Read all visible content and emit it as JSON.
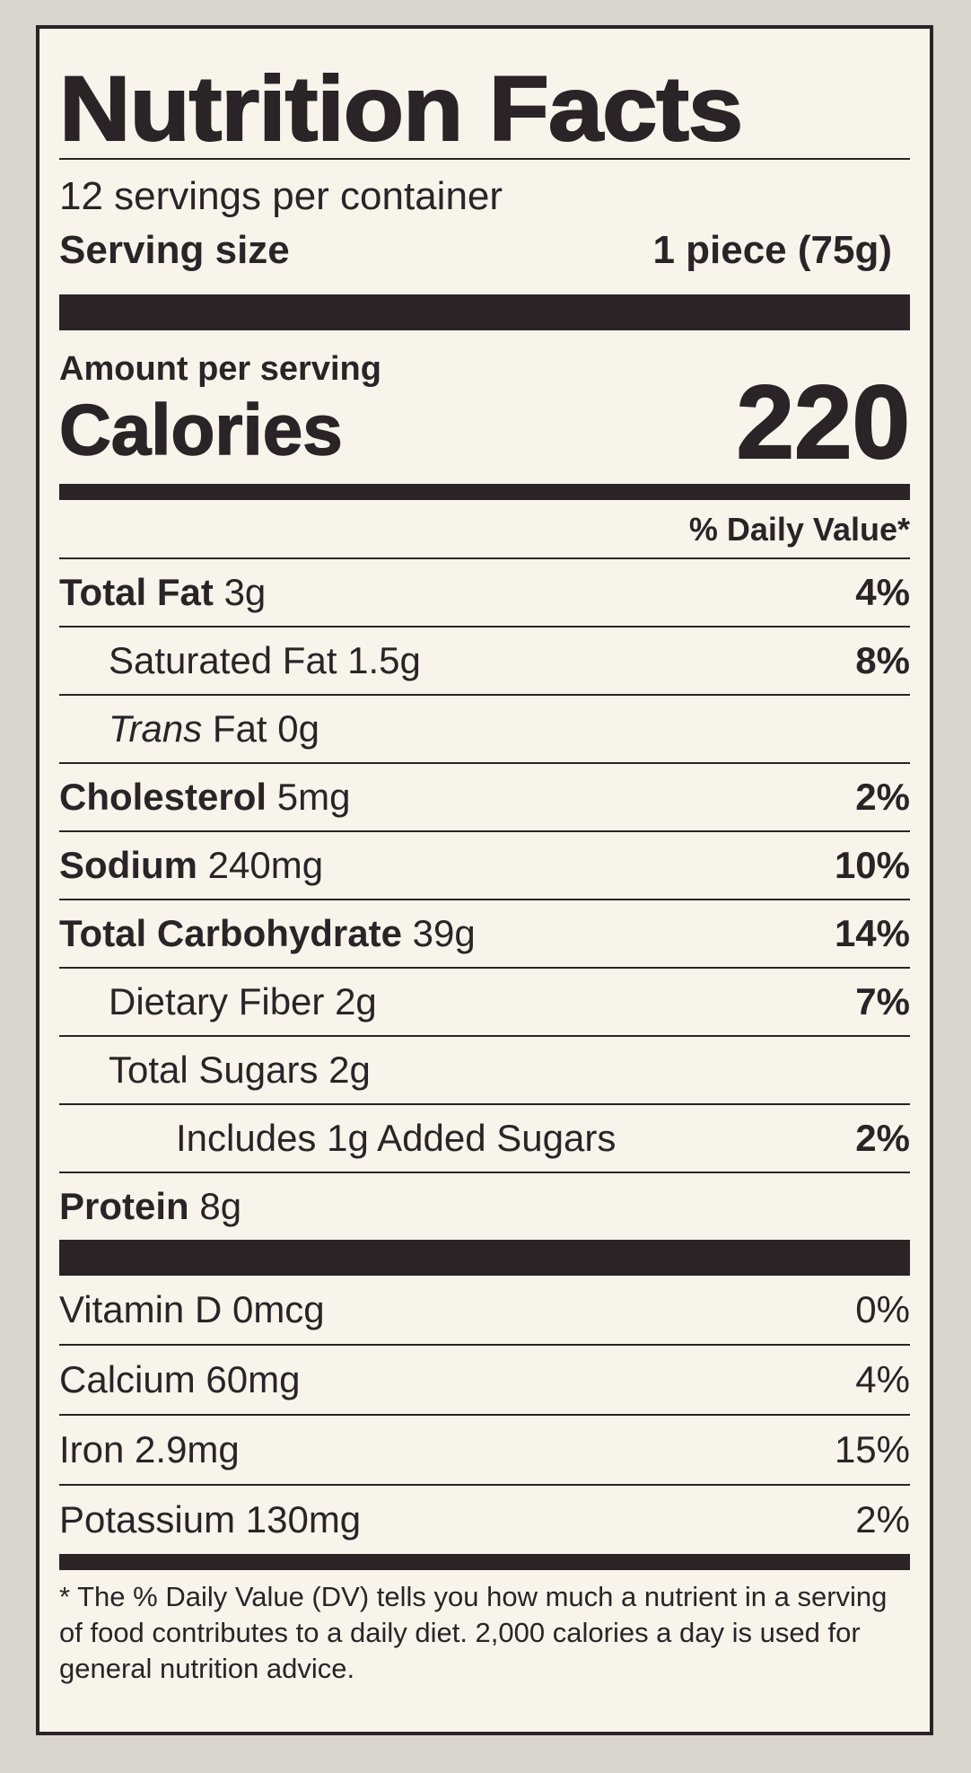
{
  "title": "Nutrition Facts",
  "servings_per_container": "12 servings per container",
  "serving_size": {
    "label": "Serving size",
    "value": "1 piece (75g)"
  },
  "amount_per_serving": "Amount per serving",
  "calories": {
    "label": "Calories",
    "value": "220"
  },
  "daily_value_header": "% Daily Value*",
  "nutrients": [
    {
      "name": "Total Fat",
      "amount": "3g",
      "dv": "4%"
    },
    {
      "name": "Saturated Fat",
      "amount": "1.5g",
      "dv": "8%"
    },
    {
      "name": "Trans",
      "amount": "Fat 0g",
      "dv": ""
    },
    {
      "name": "Cholesterol",
      "amount": "5mg",
      "dv": "2%"
    },
    {
      "name": "Sodium",
      "amount": "240mg",
      "dv": "10%"
    },
    {
      "name": "Total Carbohydrate",
      "amount": "39g",
      "dv": "14%"
    },
    {
      "name": "Dietary Fiber",
      "amount": "2g",
      "dv": "7%"
    },
    {
      "name": "Total Sugars",
      "amount": "2g",
      "dv": ""
    },
    {
      "name": "Includes 1g Added Sugars",
      "amount": "",
      "dv": "2%"
    },
    {
      "name": "Protein",
      "amount": "8g",
      "dv": ""
    }
  ],
  "vitamins": [
    {
      "name": "Vitamin D 0mcg",
      "dv": "0%"
    },
    {
      "name": "Calcium 60mg",
      "dv": "4%"
    },
    {
      "name": "Iron 2.9mg",
      "dv": "15%"
    },
    {
      "name": "Potassium 130mg",
      "dv": "2%"
    }
  ],
  "footnote": "* The % Daily Value (DV) tells you how much a nutrient in a serving of food contributes to a daily diet. 2,000 calories a day is used for general nutrition advice."
}
